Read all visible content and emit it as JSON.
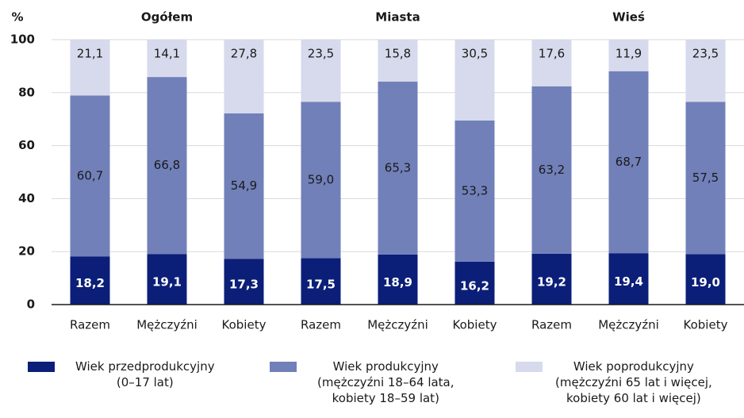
{
  "chart_data": {
    "type": "stacked_bar",
    "y_axis_label": "%",
    "groups": [
      "Ogółem",
      "Miasta",
      "Wieś"
    ],
    "categories": [
      "Razem",
      "Mężczyźni",
      "Kobiety",
      "Razem",
      "Mężczyźni",
      "Kobiety",
      "Razem",
      "Mężczyźni",
      "Kobiety"
    ],
    "series": [
      {
        "name": "Wiek przedprodukcyjny\n(0–17 lat)",
        "color": "#0b1f78",
        "values": [
          18.2,
          19.1,
          17.3,
          17.5,
          18.9,
          16.2,
          19.2,
          19.4,
          19.0
        ],
        "value_labels": [
          "18,2",
          "19,1",
          "17,3",
          "17,5",
          "18,9",
          "16,2",
          "19,2",
          "19,4",
          "19,0"
        ]
      },
      {
        "name": "Wiek produkcyjny\n(mężczyźni 18–64 lata,\nkobiety 18–59 lat)",
        "color": "#7180b9",
        "values": [
          60.7,
          66.8,
          54.9,
          59.0,
          65.3,
          53.3,
          63.2,
          68.7,
          57.5
        ],
        "value_labels": [
          "60,7",
          "66,8",
          "54,9",
          "59,0",
          "65,3",
          "53,3",
          "63,2",
          "68,7",
          "57,5"
        ]
      },
      {
        "name": "Wiek poprodukcyjny\n(mężczyźni 65 lat i więcej,\nkobiety 60 lat i więcej)",
        "color": "#d6daec",
        "values": [
          21.1,
          14.1,
          27.8,
          23.5,
          15.8,
          30.5,
          17.6,
          11.9,
          23.5
        ],
        "value_labels": [
          "21,1",
          "14,1",
          "27,8",
          "23,5",
          "15,8",
          "30,5",
          "17,6",
          "11,9",
          "23,5"
        ]
      }
    ],
    "ylim": [
      0,
      100
    ],
    "yticks": [
      0,
      20,
      40,
      60,
      80,
      100
    ],
    "grid": true
  }
}
